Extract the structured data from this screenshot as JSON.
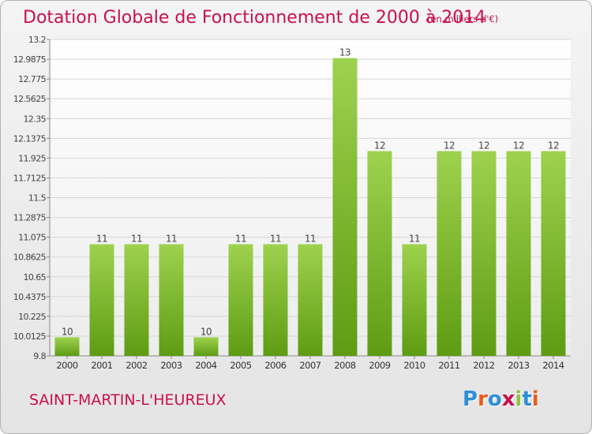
{
  "header": {
    "title": "Dotation Globale de Fonctionnement de 2000 à 2014",
    "unit": "(en milliers d'€)"
  },
  "footer": {
    "commune": "SAINT-MARTIN-L'HEUREUX",
    "logo": "Proxiti"
  },
  "colors": {
    "title": "#c8104b",
    "bar_light": "#9ed24e",
    "bar_dark": "#5e9c13",
    "logo_letters": [
      "#2e8fd6",
      "#ea5b1c",
      "#2e8fd6",
      "#c8104b",
      "#8cc43c",
      "#2e8fd6",
      "#ea5b1c"
    ]
  },
  "chart_data": {
    "type": "bar",
    "title": "Dotation Globale de Fonctionnement de 2000 à 2014",
    "subtitle": "(en milliers d'€)",
    "xlabel": "",
    "ylabel": "",
    "categories": [
      "2000",
      "2001",
      "2002",
      "2003",
      "2004",
      "2005",
      "2006",
      "2007",
      "2008",
      "2009",
      "2010",
      "2011",
      "2012",
      "2013",
      "2014"
    ],
    "values": [
      10,
      11,
      11,
      11,
      10,
      11,
      11,
      11,
      13,
      12,
      11,
      12,
      12,
      12,
      12
    ],
    "ylim": [
      9.8,
      13.2
    ],
    "yticks": [
      "9.8",
      "10.0125",
      "10.225",
      "10.4375",
      "10.65",
      "10.8625",
      "11.075",
      "11.2875",
      "11.5",
      "11.7125",
      "11.925",
      "12.1375",
      "12.35",
      "12.5625",
      "12.775",
      "12.9875",
      "13.2"
    ],
    "grid": true,
    "legend": "none"
  }
}
